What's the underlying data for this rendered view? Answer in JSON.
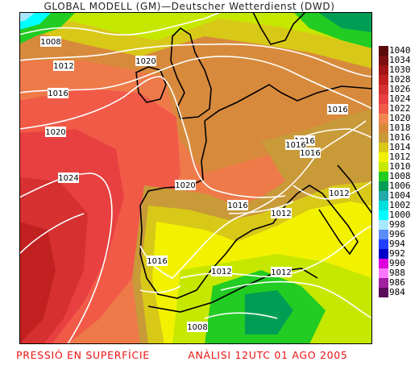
{
  "title": "GLOBAL MODELL (GM)—Deutscher Wetterdienst (DWD)",
  "caption": {
    "left": "PRESSIÓ EN SUPERFÍCIE",
    "right": "ANÀLISI 12UTC 01 AGO 2005"
  },
  "isobar_labels": [
    "1008",
    "1012",
    "1016",
    "1020",
    "1020",
    "1024",
    "1020",
    "1016",
    "1016",
    "1016",
    "1016",
    "1012",
    "1012",
    "1016",
    "1012",
    "1012",
    "1008",
    "1016"
  ],
  "legend": [
    {
      "value": "1040",
      "color": "#5a0a0a"
    },
    {
      "value": "1034",
      "color": "#7c1010"
    },
    {
      "value": "1030",
      "color": "#a01515"
    },
    {
      "value": "1028",
      "color": "#c02020"
    },
    {
      "value": "1026",
      "color": "#d63030"
    },
    {
      "value": "1024",
      "color": "#e84040"
    },
    {
      "value": "1022",
      "color": "#f25a48"
    },
    {
      "value": "1020",
      "color": "#f28650"
    },
    {
      "value": "1018",
      "color": "#d88a3c"
    },
    {
      "value": "1016",
      "color": "#c89a38"
    },
    {
      "value": "1014",
      "color": "#d8c818"
    },
    {
      "value": "1012",
      "color": "#f2f200"
    },
    {
      "value": "1010",
      "color": "#c6e800"
    },
    {
      "value": "1008",
      "color": "#22cc22"
    },
    {
      "value": "1006",
      "color": "#009e55"
    },
    {
      "value": "1004",
      "color": "#22aaaa"
    },
    {
      "value": "1002",
      "color": "#00dddd"
    },
    {
      "value": "1000",
      "color": "#00ffff"
    },
    {
      "value": "998",
      "color": "#a8e8ff"
    },
    {
      "value": "996",
      "color": "#5a8cff"
    },
    {
      "value": "994",
      "color": "#2040ff"
    },
    {
      "value": "992",
      "color": "#0000c8"
    },
    {
      "value": "990",
      "color": "#dd00dd"
    },
    {
      "value": "988",
      "color": "#ff77ff"
    },
    {
      "value": "986",
      "color": "#a020a0"
    },
    {
      "value": "984",
      "color": "#5a0a5a"
    }
  ]
}
